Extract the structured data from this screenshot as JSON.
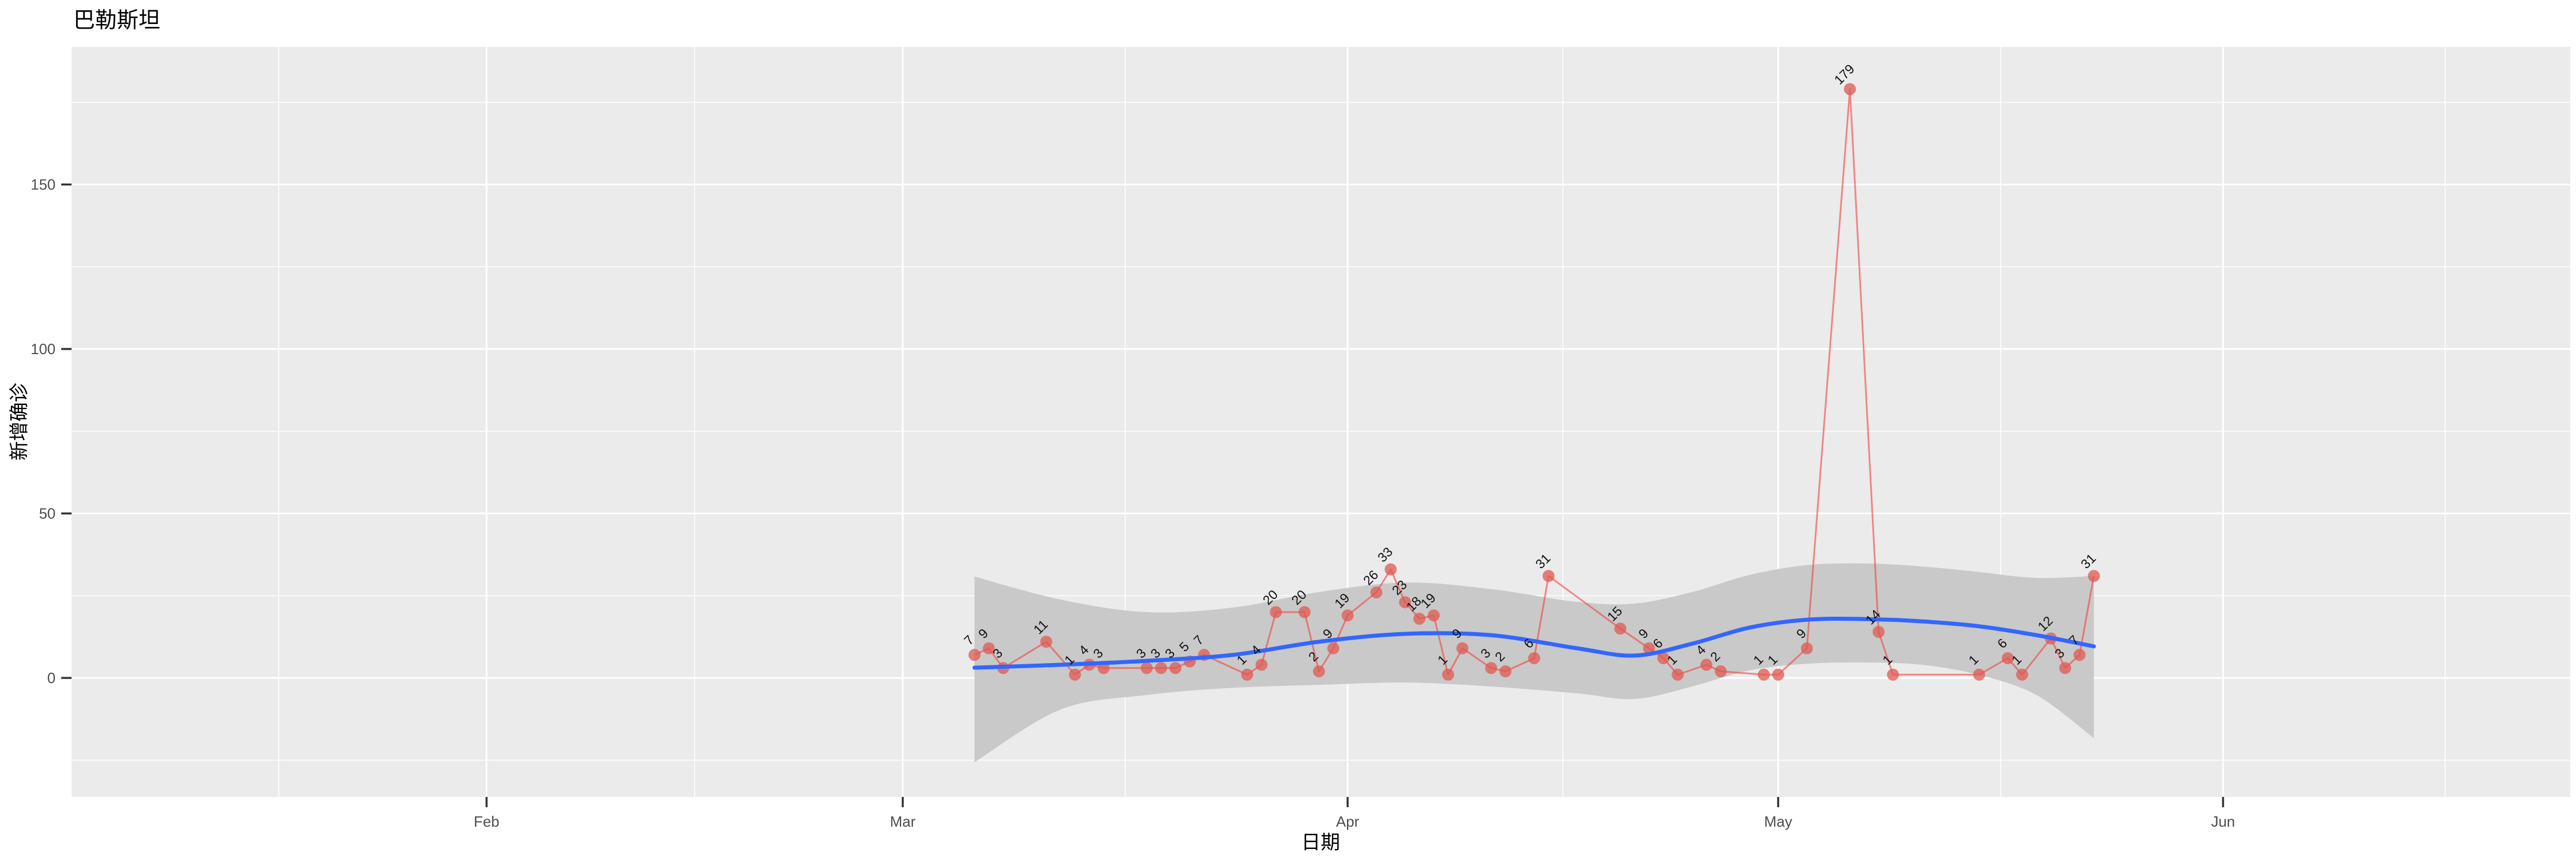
{
  "chart_data": {
    "type": "line",
    "title": "巴勒斯坦",
    "xlabel": "日期",
    "ylabel": "新增确诊",
    "x_axis": {
      "tick_labels": [
        "Feb",
        "Mar",
        "Apr",
        "May",
        "Jun"
      ],
      "tick_dates": [
        "2020-02-01",
        "2020-03-01",
        "2020-04-01",
        "2020-05-01",
        "2020-06-01"
      ],
      "minor_grid": true
    },
    "y_axis": {
      "tick_labels": [
        "0",
        "50",
        "100",
        "150"
      ],
      "ticks": [
        0,
        50,
        100,
        150
      ],
      "minor_ticks": [
        -25,
        25,
        75,
        125,
        175
      ],
      "ylim": [
        -36,
        192
      ]
    },
    "legend": "none",
    "grid": "on",
    "series": [
      {
        "name": "daily-new-cases",
        "kind": "line+points+labels",
        "label_angle_deg": 45,
        "points": [
          {
            "date": "2020-03-06",
            "value": 7
          },
          {
            "date": "2020-03-07",
            "value": 9
          },
          {
            "date": "2020-03-08",
            "value": 3
          },
          {
            "date": "2020-03-11",
            "value": 11
          },
          {
            "date": "2020-03-13",
            "value": 1
          },
          {
            "date": "2020-03-14",
            "value": 4
          },
          {
            "date": "2020-03-15",
            "value": 3
          },
          {
            "date": "2020-03-18",
            "value": 3
          },
          {
            "date": "2020-03-19",
            "value": 3
          },
          {
            "date": "2020-03-20",
            "value": 3
          },
          {
            "date": "2020-03-21",
            "value": 5
          },
          {
            "date": "2020-03-22",
            "value": 7
          },
          {
            "date": "2020-03-25",
            "value": 1
          },
          {
            "date": "2020-03-26",
            "value": 4
          },
          {
            "date": "2020-03-27",
            "value": 20
          },
          {
            "date": "2020-03-29",
            "value": 20
          },
          {
            "date": "2020-03-30",
            "value": 2
          },
          {
            "date": "2020-03-31",
            "value": 9
          },
          {
            "date": "2020-04-01",
            "value": 19
          },
          {
            "date": "2020-04-03",
            "value": 26
          },
          {
            "date": "2020-04-04",
            "value": 33
          },
          {
            "date": "2020-04-05",
            "value": 23
          },
          {
            "date": "2020-04-06",
            "value": 18
          },
          {
            "date": "2020-04-07",
            "value": 19
          },
          {
            "date": "2020-04-08",
            "value": 1
          },
          {
            "date": "2020-04-09",
            "value": 9
          },
          {
            "date": "2020-04-11",
            "value": 3
          },
          {
            "date": "2020-04-12",
            "value": 2
          },
          {
            "date": "2020-04-14",
            "value": 6
          },
          {
            "date": "2020-04-15",
            "value": 31
          },
          {
            "date": "2020-04-20",
            "value": 15
          },
          {
            "date": "2020-04-22",
            "value": 9
          },
          {
            "date": "2020-04-23",
            "value": 6
          },
          {
            "date": "2020-04-24",
            "value": 1
          },
          {
            "date": "2020-04-26",
            "value": 4
          },
          {
            "date": "2020-04-27",
            "value": 2
          },
          {
            "date": "2020-04-30",
            "value": 1
          },
          {
            "date": "2020-05-01",
            "value": 1
          },
          {
            "date": "2020-05-03",
            "value": 9
          },
          {
            "date": "2020-05-06",
            "value": 179
          },
          {
            "date": "2020-05-08",
            "value": 14
          },
          {
            "date": "2020-05-09",
            "value": 1
          },
          {
            "date": "2020-05-15",
            "value": 1
          },
          {
            "date": "2020-05-17",
            "value": 6
          },
          {
            "date": "2020-05-18",
            "value": 1
          },
          {
            "date": "2020-05-20",
            "value": 12
          },
          {
            "date": "2020-05-21",
            "value": 3
          },
          {
            "date": "2020-05-22",
            "value": 7
          },
          {
            "date": "2020-05-23",
            "value": 31
          }
        ]
      },
      {
        "name": "smooth-trend",
        "kind": "line",
        "points": [
          {
            "date": "2020-03-06",
            "value": 3.1
          },
          {
            "date": "2020-03-12",
            "value": 4.0
          },
          {
            "date": "2020-03-18",
            "value": 5.2
          },
          {
            "date": "2020-03-24",
            "value": 7.0
          },
          {
            "date": "2020-03-30",
            "value": 11.0
          },
          {
            "date": "2020-04-05",
            "value": 13.4
          },
          {
            "date": "2020-04-11",
            "value": 13.0
          },
          {
            "date": "2020-04-17",
            "value": 9.0
          },
          {
            "date": "2020-04-21",
            "value": 6.8
          },
          {
            "date": "2020-04-25",
            "value": 10.4
          },
          {
            "date": "2020-04-29",
            "value": 15.3
          },
          {
            "date": "2020-05-03",
            "value": 17.7
          },
          {
            "date": "2020-05-07",
            "value": 17.9
          },
          {
            "date": "2020-05-11",
            "value": 17.2
          },
          {
            "date": "2020-05-15",
            "value": 15.7
          },
          {
            "date": "2020-05-19",
            "value": 13.0
          },
          {
            "date": "2020-05-23",
            "value": 9.6
          }
        ]
      },
      {
        "name": "confidence-band",
        "kind": "area",
        "points": [
          {
            "date": "2020-03-06",
            "upper": 30.8,
            "lower": -25.6
          },
          {
            "date": "2020-03-12",
            "upper": 23.8,
            "lower": -9.6
          },
          {
            "date": "2020-03-18",
            "upper": 20.0,
            "lower": -5.2
          },
          {
            "date": "2020-03-24",
            "upper": 21.4,
            "lower": -3.0
          },
          {
            "date": "2020-03-30",
            "upper": 26.1,
            "lower": -2.1
          },
          {
            "date": "2020-04-05",
            "upper": 29.0,
            "lower": -1.4
          },
          {
            "date": "2020-04-11",
            "upper": 27.0,
            "lower": -2.6
          },
          {
            "date": "2020-04-17",
            "upper": 23.1,
            "lower": -4.7
          },
          {
            "date": "2020-04-21",
            "upper": 22.6,
            "lower": -6.4
          },
          {
            "date": "2020-04-25",
            "upper": 26.1,
            "lower": -2.6
          },
          {
            "date": "2020-04-29",
            "upper": 31.3,
            "lower": 2.3
          },
          {
            "date": "2020-05-03",
            "upper": 34.3,
            "lower": 4.3
          },
          {
            "date": "2020-05-07",
            "upper": 34.8,
            "lower": 4.7
          },
          {
            "date": "2020-05-11",
            "upper": 33.9,
            "lower": 4.0
          },
          {
            "date": "2020-05-15",
            "upper": 32.2,
            "lower": 0.9
          },
          {
            "date": "2020-05-19",
            "upper": 30.4,
            "lower": -5.2
          },
          {
            "date": "2020-05-23",
            "upper": 31.0,
            "lower": -18.3
          }
        ]
      }
    ],
    "colors": {
      "panel_bg": "#ebebeb",
      "grid": "#ffffff",
      "band": "#c9c9c9",
      "case_line": "#f2423a",
      "case_point": "#dd5a52",
      "smooth_line": "#3366ff",
      "tick_text": "#4d4d4d",
      "axis_title_text": "#000000",
      "data_label_text": "#111111",
      "tick_mark": "#333333"
    }
  }
}
